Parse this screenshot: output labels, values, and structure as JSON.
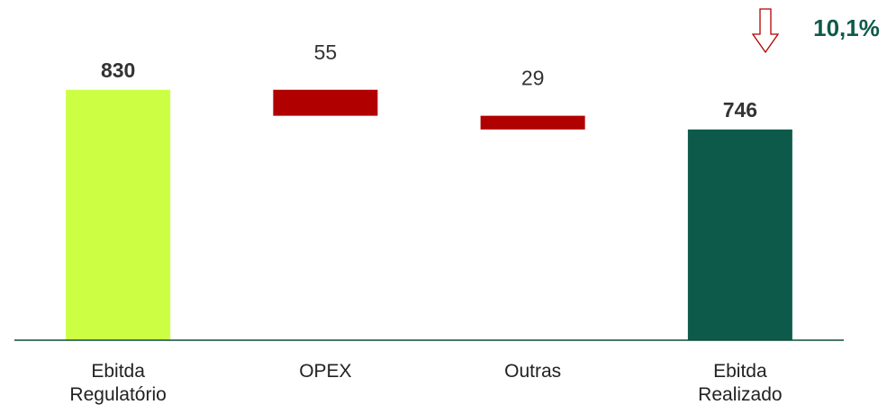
{
  "chart_data": {
    "type": "waterfall",
    "categories": [
      "Ebitda Regulatório",
      "OPEX",
      "Outras",
      "Ebitda Realizado"
    ],
    "values": [
      830,
      55,
      29,
      746
    ],
    "measure": [
      "total",
      "decrease",
      "decrease",
      "total"
    ],
    "colors": [
      "#ccff44",
      "#b00000",
      "#b00000",
      "#0e5a4a"
    ],
    "ylim": [
      300,
      860
    ],
    "annotation": "10,1%",
    "annotation_direction": "down"
  }
}
